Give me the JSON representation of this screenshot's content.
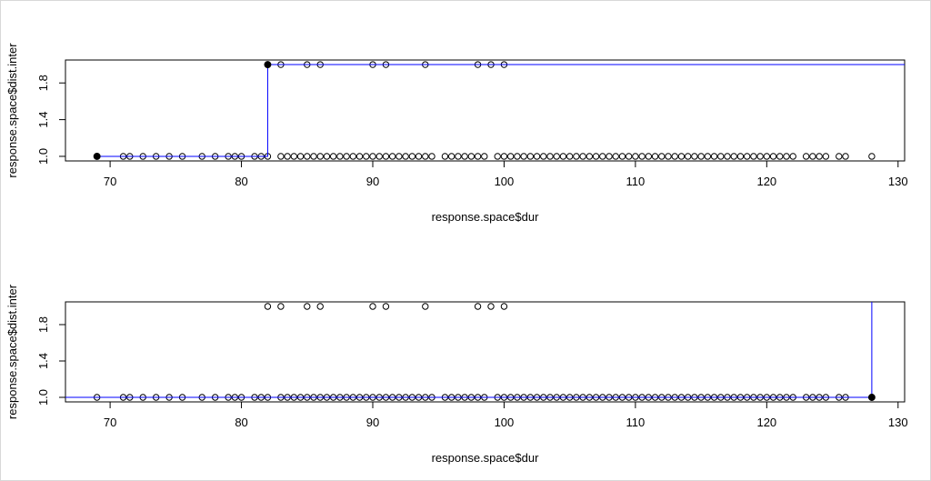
{
  "chart_data": [
    {
      "type": "scatter",
      "xlabel": "response.space$dur",
      "ylabel": "response.space$dist.inter",
      "xlim": [
        66.6,
        130.5
      ],
      "ylim": [
        0.95,
        2.05
      ],
      "xticks": [
        70,
        80,
        90,
        100,
        110,
        120,
        130
      ],
      "yticks": [
        {
          "value": 1,
          "label": "1.0"
        },
        1.4,
        1.8
      ],
      "series": [
        {
          "marker": "open",
          "color": "#000000",
          "x": [
            69,
            71,
            71.5,
            72.5,
            73.5,
            74.5,
            75.5,
            77,
            78,
            79,
            79.5,
            80,
            81,
            81.5,
            82,
            83,
            83.5,
            84,
            84.5,
            85,
            85.5,
            86,
            86.5,
            87,
            87.5,
            88,
            88.5,
            89,
            89.5,
            90,
            90.5,
            91,
            91.5,
            92,
            92.5,
            93,
            93.5,
            94,
            94.5,
            95.5,
            96,
            96.5,
            97,
            97.5,
            98,
            98.5,
            99.5,
            100,
            100.5,
            101,
            101.5,
            102,
            102.5,
            103,
            103.5,
            104,
            104.5,
            105,
            105.5,
            106,
            106.5,
            107,
            107.5,
            108,
            108.5,
            109,
            109.5,
            110,
            110.5,
            111,
            111.5,
            112,
            112.5,
            113,
            113.5,
            114,
            114.5,
            115,
            115.5,
            116,
            116.5,
            117,
            117.5,
            118,
            118.5,
            119,
            119.5,
            120,
            120.5,
            121,
            121.5,
            122,
            123,
            123.5,
            124,
            124.5,
            125.5,
            126,
            128,
            82,
            83,
            85,
            86,
            90,
            91,
            94,
            98,
            99,
            100
          ],
          "values": [
            1,
            1,
            1,
            1,
            1,
            1,
            1,
            1,
            1,
            1,
            1,
            1,
            1,
            1,
            1,
            1,
            1,
            1,
            1,
            1,
            1,
            1,
            1,
            1,
            1,
            1,
            1,
            1,
            1,
            1,
            1,
            1,
            1,
            1,
            1,
            1,
            1,
            1,
            1,
            1,
            1,
            1,
            1,
            1,
            1,
            1,
            1,
            1,
            1,
            1,
            1,
            1,
            1,
            1,
            1,
            1,
            1,
            1,
            1,
            1,
            1,
            1,
            1,
            1,
            1,
            1,
            1,
            1,
            1,
            1,
            1,
            1,
            1,
            1,
            1,
            1,
            1,
            1,
            1,
            1,
            1,
            1,
            1,
            1,
            1,
            1,
            1,
            1,
            1,
            1,
            1,
            1,
            1,
            1,
            1,
            1,
            1,
            1,
            1,
            2,
            2,
            2,
            2,
            2,
            2,
            2,
            2,
            2,
            2
          ]
        },
        {
          "marker": "line",
          "color": "#0000ff",
          "x": [
            69,
            82,
            82,
            130.5
          ],
          "values": [
            1,
            1,
            2,
            2
          ]
        },
        {
          "marker": "filled",
          "color": "#000000",
          "x": [
            69,
            82
          ],
          "values": [
            1,
            2
          ]
        }
      ]
    },
    {
      "type": "scatter",
      "xlabel": "response.space$dur",
      "ylabel": "response.space$dist.inter",
      "xlim": [
        66.6,
        130.5
      ],
      "ylim": [
        0.95,
        2.05
      ],
      "xticks": [
        70,
        80,
        90,
        100,
        110,
        120,
        130
      ],
      "yticks": [
        {
          "value": 1,
          "label": "1.0"
        },
        1.4,
        1.8
      ],
      "series": [
        {
          "marker": "open",
          "color": "#000000",
          "x": [
            69,
            71,
            71.5,
            72.5,
            73.5,
            74.5,
            75.5,
            77,
            78,
            79,
            79.5,
            80,
            81,
            81.5,
            82,
            83,
            83.5,
            84,
            84.5,
            85,
            85.5,
            86,
            86.5,
            87,
            87.5,
            88,
            88.5,
            89,
            89.5,
            90,
            90.5,
            91,
            91.5,
            92,
            92.5,
            93,
            93.5,
            94,
            94.5,
            95.5,
            96,
            96.5,
            97,
            97.5,
            98,
            98.5,
            99.5,
            100,
            100.5,
            101,
            101.5,
            102,
            102.5,
            103,
            103.5,
            104,
            104.5,
            105,
            105.5,
            106,
            106.5,
            107,
            107.5,
            108,
            108.5,
            109,
            109.5,
            110,
            110.5,
            111,
            111.5,
            112,
            112.5,
            113,
            113.5,
            114,
            114.5,
            115,
            115.5,
            116,
            116.5,
            117,
            117.5,
            118,
            118.5,
            119,
            119.5,
            120,
            120.5,
            121,
            121.5,
            122,
            123,
            123.5,
            124,
            124.5,
            125.5,
            126,
            128,
            82,
            83,
            85,
            86,
            90,
            91,
            94,
            98,
            99,
            100
          ],
          "values": [
            1,
            1,
            1,
            1,
            1,
            1,
            1,
            1,
            1,
            1,
            1,
            1,
            1,
            1,
            1,
            1,
            1,
            1,
            1,
            1,
            1,
            1,
            1,
            1,
            1,
            1,
            1,
            1,
            1,
            1,
            1,
            1,
            1,
            1,
            1,
            1,
            1,
            1,
            1,
            1,
            1,
            1,
            1,
            1,
            1,
            1,
            1,
            1,
            1,
            1,
            1,
            1,
            1,
            1,
            1,
            1,
            1,
            1,
            1,
            1,
            1,
            1,
            1,
            1,
            1,
            1,
            1,
            1,
            1,
            1,
            1,
            1,
            1,
            1,
            1,
            1,
            1,
            1,
            1,
            1,
            1,
            1,
            1,
            1,
            1,
            1,
            1,
            1,
            1,
            1,
            1,
            1,
            1,
            1,
            1,
            1,
            1,
            1,
            1,
            2,
            2,
            2,
            2,
            2,
            2,
            2,
            2,
            2,
            2
          ]
        },
        {
          "marker": "line",
          "color": "#0000ff",
          "x": [
            66.6,
            128,
            128
          ],
          "values": [
            1,
            1,
            2.05
          ]
        },
        {
          "marker": "filled",
          "color": "#000000",
          "x": [
            128
          ],
          "values": [
            1
          ]
        }
      ]
    }
  ]
}
